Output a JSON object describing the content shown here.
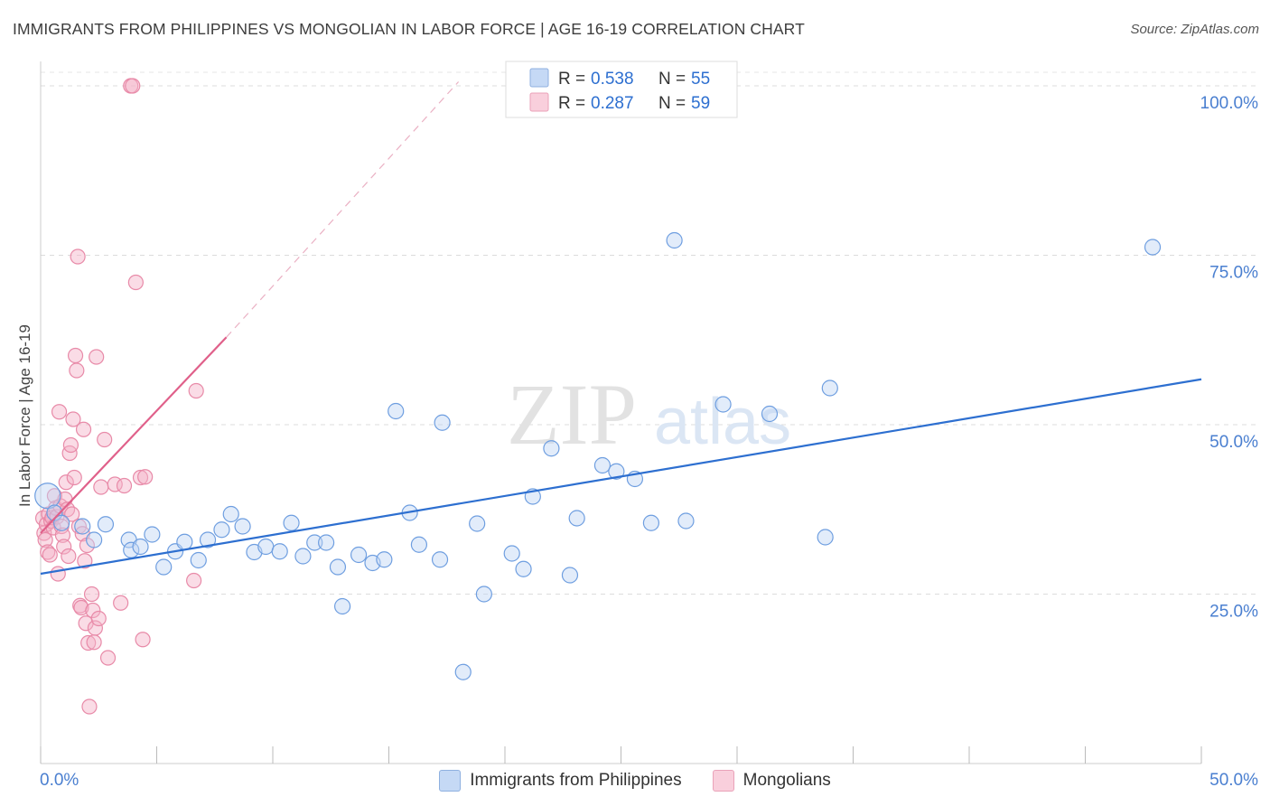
{
  "header": {
    "title": "IMMIGRANTS FROM PHILIPPINES VS MONGOLIAN IN LABOR FORCE | AGE 16-19 CORRELATION CHART",
    "source": "Source: ZipAtlas.com"
  },
  "watermark": {
    "zip": "ZIP",
    "atlas": "atlas"
  },
  "legend": {
    "r_label": "R =",
    "n_label": "N =",
    "series": [
      {
        "r": "0.538",
        "n": "55"
      },
      {
        "r": "0.287",
        "n": "59"
      }
    ]
  },
  "chart_data": {
    "type": "scatter",
    "title": "IMMIGRANTS FROM PHILIPPINES VS MONGOLIAN IN LABOR FORCE | AGE 16-19 CORRELATION CHART",
    "xlabel": "",
    "ylabel": "In Labor Force | Age 16-19",
    "xlim": [
      0,
      50
    ],
    "ylim": [
      0,
      102
    ],
    "x_tick_labels": [
      "0.0%",
      "50.0%"
    ],
    "y_ticks": [
      25,
      50,
      75,
      100
    ],
    "y_tick_labels": [
      "25.0%",
      "50.0%",
      "75.0%",
      "100.0%"
    ],
    "legend_position": "top-center",
    "colors": {
      "blue": "#6e9ee0",
      "blue_line": "#2d6fd0",
      "pink": "#e88aa8",
      "pink_line": "#e0608a",
      "tick_label": "#4a7fd0"
    },
    "series": [
      {
        "name": "Immigrants from Philippines",
        "r": 0.538,
        "n": 55,
        "trend": {
          "x": [
            0,
            50
          ],
          "y": [
            28.0,
            56.7
          ]
        },
        "points": [
          [
            0.3,
            39.5
          ],
          [
            0.6,
            37.0
          ],
          [
            0.9,
            35.5
          ],
          [
            1.8,
            35.0
          ],
          [
            2.3,
            33.0
          ],
          [
            2.8,
            35.3
          ],
          [
            3.8,
            33.0
          ],
          [
            3.9,
            31.5
          ],
          [
            4.3,
            32.0
          ],
          [
            4.8,
            33.8
          ],
          [
            5.3,
            29.0
          ],
          [
            5.8,
            31.3
          ],
          [
            6.2,
            32.7
          ],
          [
            6.8,
            30.0
          ],
          [
            7.2,
            33.0
          ],
          [
            7.8,
            34.5
          ],
          [
            8.2,
            36.8
          ],
          [
            8.7,
            35.0
          ],
          [
            9.2,
            31.2
          ],
          [
            9.7,
            32.0
          ],
          [
            10.3,
            31.3
          ],
          [
            10.8,
            35.5
          ],
          [
            11.3,
            30.6
          ],
          [
            11.8,
            32.6
          ],
          [
            12.3,
            32.6
          ],
          [
            12.8,
            29.0
          ],
          [
            13.0,
            23.2
          ],
          [
            13.7,
            30.8
          ],
          [
            14.3,
            29.6
          ],
          [
            14.8,
            30.1
          ],
          [
            15.3,
            52.0
          ],
          [
            15.9,
            37.0
          ],
          [
            16.3,
            32.3
          ],
          [
            17.2,
            30.1
          ],
          [
            17.3,
            50.3
          ],
          [
            18.2,
            13.5
          ],
          [
            18.8,
            35.4
          ],
          [
            19.1,
            25.0
          ],
          [
            20.3,
            31.0
          ],
          [
            20.8,
            28.7
          ],
          [
            21.2,
            39.4
          ],
          [
            22.0,
            46.5
          ],
          [
            22.8,
            27.8
          ],
          [
            23.1,
            36.2
          ],
          [
            24.2,
            44.0
          ],
          [
            24.8,
            43.1
          ],
          [
            25.6,
            42.0
          ],
          [
            26.3,
            35.5
          ],
          [
            27.3,
            77.2
          ],
          [
            27.8,
            35.8
          ],
          [
            29.4,
            53.0
          ],
          [
            31.4,
            51.6
          ],
          [
            33.8,
            33.4
          ],
          [
            34.0,
            55.4
          ],
          [
            47.9,
            76.2
          ]
        ]
      },
      {
        "name": "Mongolians",
        "r": 0.287,
        "n": 59,
        "trend": {
          "x": [
            0,
            8
          ],
          "y": [
            34.0,
            62.9
          ]
        },
        "trend_extended": {
          "x": [
            8,
            18
          ],
          "y": [
            62.9,
            100.6
          ]
        },
        "points": [
          [
            0.1,
            36.2
          ],
          [
            0.15,
            34.0
          ],
          [
            0.2,
            33.0
          ],
          [
            0.25,
            35.3
          ],
          [
            0.3,
            31.2
          ],
          [
            0.35,
            36.8
          ],
          [
            0.4,
            30.8
          ],
          [
            0.45,
            35.8
          ],
          [
            0.5,
            36.3
          ],
          [
            0.55,
            34.8
          ],
          [
            0.6,
            39.5
          ],
          [
            0.65,
            37.7
          ],
          [
            0.7,
            36.4
          ],
          [
            0.75,
            28.0
          ],
          [
            0.8,
            51.9
          ],
          [
            0.85,
            38.0
          ],
          [
            0.9,
            35.0
          ],
          [
            0.95,
            33.7
          ],
          [
            1.0,
            32.0
          ],
          [
            1.05,
            39.0
          ],
          [
            1.1,
            41.5
          ],
          [
            1.15,
            37.5
          ],
          [
            1.2,
            30.6
          ],
          [
            1.25,
            45.8
          ],
          [
            1.3,
            47.0
          ],
          [
            1.35,
            36.8
          ],
          [
            1.4,
            50.8
          ],
          [
            1.45,
            42.2
          ],
          [
            1.5,
            60.2
          ],
          [
            1.55,
            58.0
          ],
          [
            1.6,
            74.8
          ],
          [
            1.65,
            35.0
          ],
          [
            1.7,
            23.3
          ],
          [
            1.75,
            23.0
          ],
          [
            1.8,
            33.9
          ],
          [
            1.85,
            49.3
          ],
          [
            1.9,
            29.9
          ],
          [
            1.95,
            20.7
          ],
          [
            2.0,
            32.2
          ],
          [
            2.05,
            17.8
          ],
          [
            2.1,
            8.4
          ],
          [
            2.2,
            25.0
          ],
          [
            2.25,
            22.6
          ],
          [
            2.3,
            17.9
          ],
          [
            2.35,
            20.0
          ],
          [
            2.4,
            60.0
          ],
          [
            2.5,
            21.4
          ],
          [
            2.6,
            40.8
          ],
          [
            2.75,
            47.8
          ],
          [
            2.9,
            15.6
          ],
          [
            3.2,
            41.2
          ],
          [
            3.45,
            23.7
          ],
          [
            3.6,
            41.0
          ],
          [
            4.1,
            71.0
          ],
          [
            4.3,
            42.2
          ],
          [
            4.4,
            18.3
          ],
          [
            4.5,
            42.3
          ],
          [
            6.6,
            27.0
          ],
          [
            6.7,
            55.0
          ]
        ],
        "top_points": [
          [
            3.88,
            100.0
          ],
          [
            3.96,
            100.0
          ]
        ]
      }
    ]
  },
  "bottom_legend": {
    "items": [
      "Immigrants from Philippines",
      "Mongolians"
    ]
  }
}
